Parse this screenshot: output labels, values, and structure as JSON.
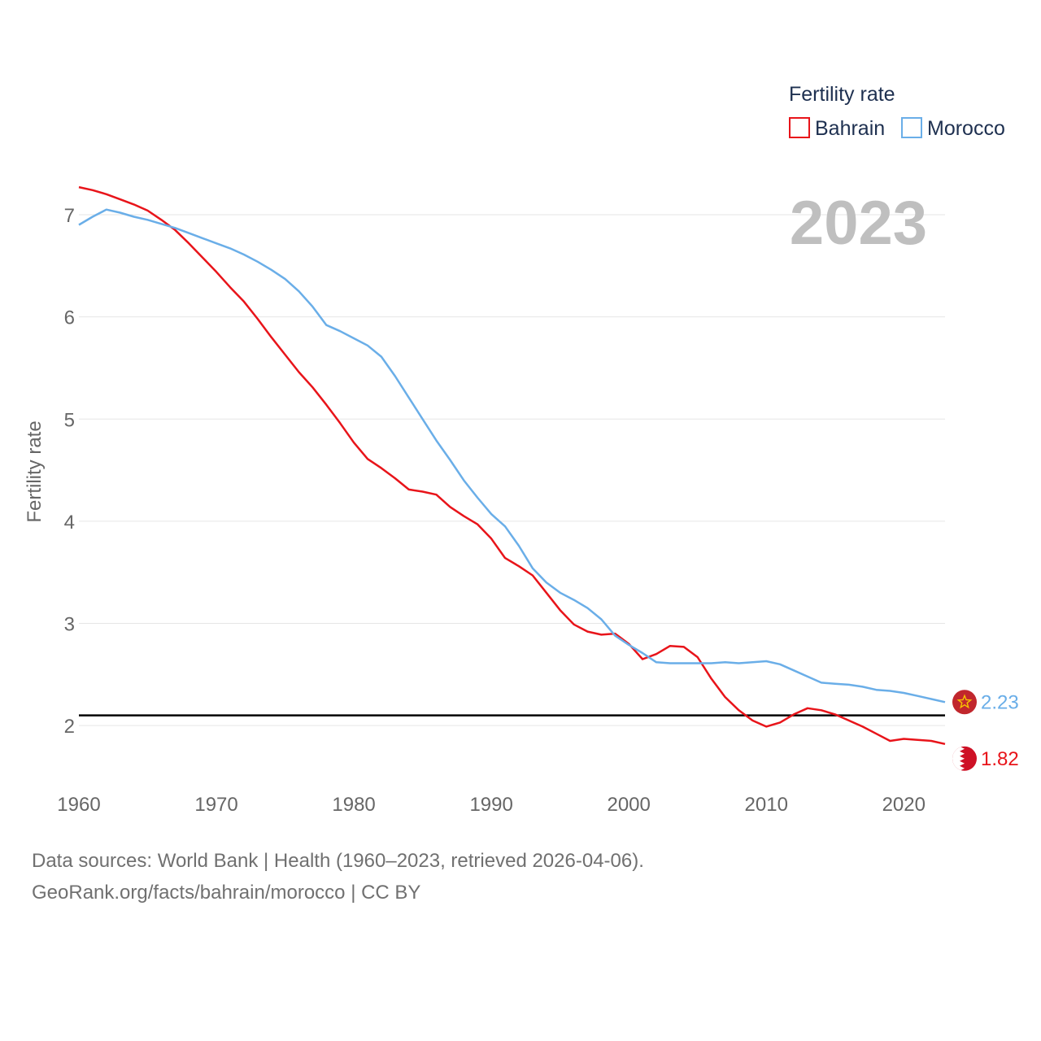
{
  "chart_data": {
    "type": "line",
    "year_label": "2023",
    "ylabel": "Fertility rate",
    "xlim": [
      1960,
      2023
    ],
    "ylim": [
      1.5,
      7.35
    ],
    "x_ticks": [
      1960,
      1970,
      1980,
      1990,
      2000,
      2010,
      2020
    ],
    "y_ticks": [
      2,
      3,
      4,
      5,
      6,
      7
    ],
    "reference_line": {
      "y": 2.1,
      "color": "#000000"
    },
    "legend": {
      "title": "Fertility rate",
      "placement": "top-right"
    },
    "x": [
      1960,
      1961,
      1962,
      1963,
      1964,
      1965,
      1966,
      1967,
      1968,
      1969,
      1970,
      1971,
      1972,
      1973,
      1974,
      1975,
      1976,
      1977,
      1978,
      1979,
      1980,
      1981,
      1982,
      1983,
      1984,
      1985,
      1986,
      1987,
      1988,
      1989,
      1990,
      1991,
      1992,
      1993,
      1994,
      1995,
      1996,
      1997,
      1998,
      1999,
      2000,
      2001,
      2002,
      2003,
      2004,
      2005,
      2006,
      2007,
      2008,
      2009,
      2010,
      2011,
      2012,
      2013,
      2014,
      2015,
      2016,
      2017,
      2018,
      2019,
      2020,
      2021,
      2022,
      2023
    ],
    "series": [
      {
        "name": "Bahrain",
        "color": "#e8141a",
        "end_label": "1.82",
        "flag": "bahrain-flag",
        "values": [
          7.27,
          7.24,
          7.2,
          7.15,
          7.1,
          7.04,
          6.95,
          6.85,
          6.72,
          6.58,
          6.44,
          6.29,
          6.15,
          5.98,
          5.8,
          5.63,
          5.46,
          5.31,
          5.14,
          4.96,
          4.77,
          4.61,
          4.52,
          4.42,
          4.31,
          4.29,
          4.26,
          4.14,
          4.05,
          3.97,
          3.83,
          3.64,
          3.56,
          3.47,
          3.3,
          3.13,
          2.99,
          2.92,
          2.89,
          2.9,
          2.8,
          2.65,
          2.7,
          2.78,
          2.77,
          2.67,
          2.46,
          2.28,
          2.15,
          2.05,
          1.99,
          2.03,
          2.11,
          2.17,
          2.15,
          2.11,
          2.05,
          1.99,
          1.92,
          1.85,
          1.87,
          1.86,
          1.85,
          1.82
        ]
      },
      {
        "name": "Morocco",
        "color": "#6aaee8",
        "end_label": "2.23",
        "flag": "morocco-flag",
        "values": [
          6.9,
          6.98,
          7.05,
          7.02,
          6.98,
          6.95,
          6.91,
          6.87,
          6.82,
          6.77,
          6.72,
          6.67,
          6.61,
          6.54,
          6.46,
          6.37,
          6.25,
          6.1,
          5.92,
          5.86,
          5.79,
          5.72,
          5.61,
          5.42,
          5.21,
          5.0,
          4.79,
          4.6,
          4.4,
          4.23,
          4.07,
          3.95,
          3.76,
          3.54,
          3.4,
          3.3,
          3.23,
          3.15,
          3.04,
          2.88,
          2.79,
          2.71,
          2.62,
          2.61,
          2.61,
          2.61,
          2.61,
          2.62,
          2.61,
          2.62,
          2.63,
          2.6,
          2.54,
          2.48,
          2.42,
          2.41,
          2.4,
          2.38,
          2.35,
          2.34,
          2.32,
          2.29,
          2.26,
          2.23
        ]
      }
    ]
  },
  "footer": {
    "sources": "Data sources: World Bank | Health (1960–2023, retrieved 2026-04-06).",
    "credit": "GeoRank.org/facts/bahrain/morocco | CC BY"
  }
}
